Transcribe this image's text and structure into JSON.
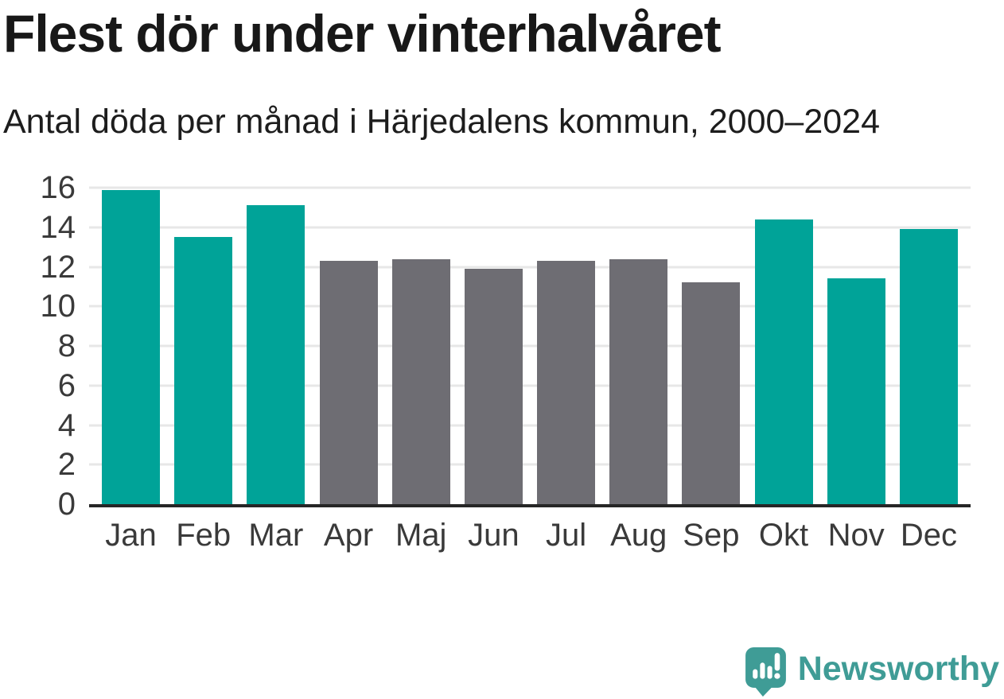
{
  "header": {
    "title": "Flest dör under vinterhalvåret",
    "subtitle": "Antal döda per månad i Härjedalens kommun, 2000–2024"
  },
  "chart_data": {
    "type": "bar",
    "categories": [
      "Jan",
      "Feb",
      "Mar",
      "Apr",
      "Maj",
      "Jun",
      "Jul",
      "Aug",
      "Sep",
      "Okt",
      "Nov",
      "Dec"
    ],
    "values": [
      15.9,
      13.5,
      15.1,
      12.3,
      12.4,
      11.9,
      12.3,
      12.4,
      11.2,
      14.4,
      11.4,
      13.9
    ],
    "bar_color_keys": [
      "teal",
      "teal",
      "teal",
      "gray",
      "gray",
      "gray",
      "gray",
      "gray",
      "gray",
      "teal",
      "teal",
      "teal"
    ],
    "title": "Flest dör under vinterhalvåret",
    "subtitle": "Antal döda per månad i Härjedalens kommun, 2000–2024",
    "xlabel": "",
    "ylabel": "",
    "ylim": [
      0,
      16
    ],
    "yticks": [
      0,
      2,
      4,
      6,
      8,
      10,
      12,
      14,
      16
    ],
    "grid": true,
    "legend": false
  },
  "colors": {
    "teal": "#00a398",
    "gray": "#6e6d73",
    "axis": "#262626",
    "gridline": "#e7e7e7",
    "tick_label": "#3a3a3a",
    "brand_teal": "#3f9c96"
  },
  "footer": {
    "brand": "Newsworthy"
  }
}
